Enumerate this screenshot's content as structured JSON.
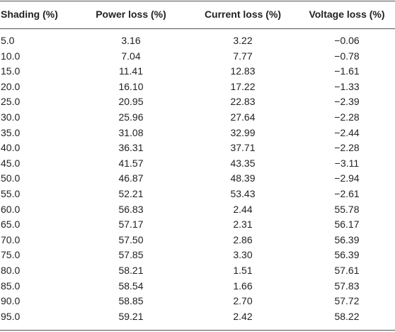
{
  "table": {
    "header": [
      "Shading (%)",
      "Power loss (%)",
      "Current loss (%)",
      "Voltage loss (%)"
    ],
    "rows": [
      [
        "5.0",
        "3.16",
        "3.22",
        "−0.06"
      ],
      [
        "10.0",
        "7.04",
        "7.77",
        "−0.78"
      ],
      [
        "15.0",
        "11.41",
        "12.83",
        "−1.61"
      ],
      [
        "20.0",
        "16.10",
        "17.22",
        "−1.33"
      ],
      [
        "25.0",
        "20.95",
        "22.83",
        "−2.39"
      ],
      [
        "30.0",
        "25.96",
        "27.64",
        "−2.28"
      ],
      [
        "35.0",
        "31.08",
        "32.99",
        "−2.44"
      ],
      [
        "40.0",
        "36.31",
        "37.71",
        "−2.28"
      ],
      [
        "45.0",
        "41.57",
        "43.35",
        "−3.11"
      ],
      [
        "50.0",
        "46.87",
        "48.39",
        "−2.94"
      ],
      [
        "55.0",
        "52.21",
        "53.43",
        "−2.61"
      ],
      [
        "60.0",
        "56.83",
        "2.44",
        "55.78"
      ],
      [
        "65.0",
        "57.17",
        "2.31",
        "56.17"
      ],
      [
        "70.0",
        "57.50",
        "2.86",
        "56.39"
      ],
      [
        "75.0",
        "57.85",
        "3.30",
        "56.39"
      ],
      [
        "80.0",
        "58.21",
        "1.51",
        "57.61"
      ],
      [
        "85.0",
        "58.54",
        "1.66",
        "57.83"
      ],
      [
        "90.0",
        "58.85",
        "2.70",
        "57.72"
      ],
      [
        "95.0",
        "59.21",
        "2.42",
        "58.22"
      ]
    ]
  }
}
